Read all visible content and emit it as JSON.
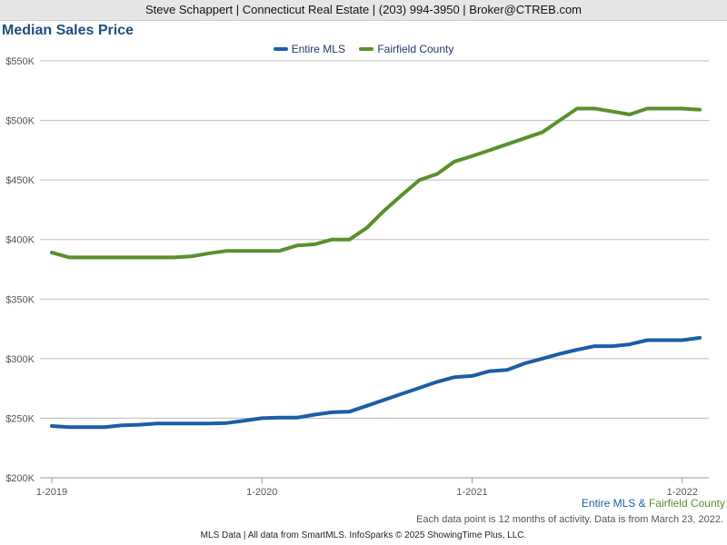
{
  "header": {
    "contact": "Steve Schappert | Connecticut Real Estate | (203) 994-3950 | Broker@CTREB.com"
  },
  "chart_data": {
    "type": "line",
    "title": "Median Sales Price",
    "xlabel": "",
    "ylabel": "",
    "ylim": [
      200000,
      550000
    ],
    "y_ticks": [
      200000,
      250000,
      300000,
      350000,
      400000,
      450000,
      500000,
      550000
    ],
    "y_tick_labels": [
      "$200K",
      "$250K",
      "$300K",
      "$350K",
      "$400K",
      "$450K",
      "$500K",
      "$550K"
    ],
    "x_ticks": [
      "1-2019",
      "1-2020",
      "1-2021",
      "1-2022"
    ],
    "x": [
      "1-2019",
      "2-2019",
      "3-2019",
      "4-2019",
      "5-2019",
      "6-2019",
      "7-2019",
      "8-2019",
      "9-2019",
      "10-2019",
      "11-2019",
      "12-2019",
      "1-2020",
      "2-2020",
      "3-2020",
      "4-2020",
      "5-2020",
      "6-2020",
      "7-2020",
      "8-2020",
      "9-2020",
      "10-2020",
      "11-2020",
      "12-2020",
      "1-2021",
      "2-2021",
      "3-2021",
      "4-2021",
      "5-2021",
      "6-2021",
      "7-2021",
      "8-2021",
      "9-2021",
      "10-2021",
      "11-2021",
      "12-2021",
      "1-2022",
      "2-2022"
    ],
    "series": [
      {
        "name": "Entire MLS",
        "color": "#1a5ea6",
        "values": [
          243500,
          242500,
          242500,
          242500,
          244000,
          244500,
          245500,
          245500,
          245500,
          245500,
          246000,
          248000,
          250000,
          250500,
          250500,
          253000,
          255000,
          255500,
          260500,
          265500,
          270500,
          275500,
          280500,
          284500,
          285500,
          289500,
          290500,
          296000,
          300000,
          304000,
          307500,
          310500,
          310500,
          312000,
          315500,
          315500,
          315500,
          317500
        ]
      },
      {
        "name": "Fairfield County",
        "color": "#5a8f2d",
        "values": [
          389000,
          385000,
          385000,
          385000,
          385000,
          385000,
          385000,
          385000,
          386000,
          388500,
          390500,
          390500,
          390500,
          390500,
          395000,
          396000,
          400000,
          400000,
          410000,
          424500,
          437500,
          450000,
          455000,
          465500,
          470000,
          475000,
          480000,
          485000,
          490000,
          500000,
          510000,
          510000,
          507500,
          505000,
          510000,
          510000,
          510000,
          509000
        ]
      }
    ],
    "grid": true,
    "legend": "top-center"
  },
  "bottom_legend": {
    "a": "Entire MLS",
    "amp": "&",
    "b": "Fairfield County"
  },
  "note": "Each data point is 12 months of activity. Data is from March 23, 2022.",
  "footer": "MLS Data | All data from SmartMLS. InfoSparks © 2025 ShowingTime Plus, LLC."
}
